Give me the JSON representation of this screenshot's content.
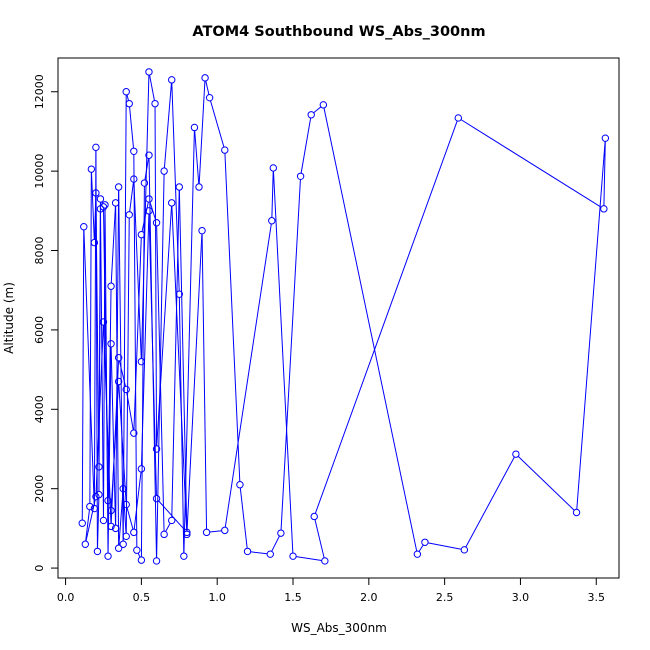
{
  "chart_data": {
    "type": "line",
    "title": "ATOM4 Southbound WS_Abs_300nm",
    "xlabel": "WS_Abs_300nm",
    "ylabel": "Altitude (m)",
    "xlim": [
      -0.05,
      3.65
    ],
    "ylim": [
      -250,
      12850
    ],
    "xticks": [
      0.0,
      0.5,
      1.0,
      1.5,
      2.0,
      2.5,
      3.0,
      3.5
    ],
    "xtick_labels": [
      "0.0",
      "0.5",
      "1.0",
      "1.5",
      "2.0",
      "2.5",
      "3.0",
      "3.5"
    ],
    "yticks": [
      0,
      2000,
      4000,
      6000,
      8000,
      10000,
      12000
    ],
    "ytick_labels": [
      "0",
      "2000",
      "4000",
      "6000",
      "8000",
      "10000",
      "12000"
    ],
    "grid": false,
    "legend": "none",
    "series_color": "#0000ff",
    "series": [
      {
        "marker": "open-circle",
        "x": [
          0.11,
          0.12,
          0.19,
          0.2,
          0.21,
          0.22,
          0.23,
          0.25,
          0.26,
          0.28,
          0.3,
          0.33,
          0.35,
          0.38,
          0.4,
          0.42,
          0.45,
          0.47,
          0.5,
          0.52,
          0.55,
          0.6,
          0.65,
          0.7,
          0.75,
          0.78,
          0.85,
          0.88,
          0.92,
          0.95,
          1.05,
          1.15,
          1.2,
          1.35,
          1.42,
          1.55,
          1.62,
          1.7,
          2.32,
          2.37,
          2.63,
          2.97,
          3.37,
          3.56,
          3.55,
          2.59,
          1.64,
          1.71,
          1.5,
          1.37,
          1.36,
          1.05,
          0.93,
          0.9,
          0.8,
          0.7,
          0.6,
          0.59,
          0.55,
          0.5,
          0.45,
          0.42,
          0.4,
          0.38,
          0.35,
          0.33,
          0.3,
          0.28,
          0.25,
          0.23,
          0.22,
          0.2,
          0.19,
          0.17,
          0.16,
          0.13,
          0.2,
          0.25,
          0.3,
          0.35,
          0.4,
          0.45,
          0.5,
          0.55,
          0.6,
          0.65,
          0.7,
          0.75,
          0.8,
          0.6,
          0.55,
          0.5,
          0.45,
          0.4,
          0.35,
          0.3
        ],
        "y": [
          1130,
          8600,
          1500,
          10600,
          420,
          1850,
          9050,
          1200,
          9150,
          300,
          5650,
          1000,
          9600,
          600,
          12000,
          11700,
          10500,
          450,
          200,
          9700,
          10400,
          180,
          10000,
          12300,
          6900,
          300,
          11100,
          9600,
          12350,
          11850,
          10530,
          2100,
          420,
          350,
          880,
          9870,
          11420,
          11670,
          350,
          650,
          460,
          2870,
          1400,
          10830,
          9050,
          11340,
          1300,
          180,
          300,
          10080,
          8750,
          950,
          900,
          8500,
          850,
          9200,
          3000,
          11700,
          12500,
          5200,
          9800,
          8900,
          800,
          2000,
          500,
          9200,
          7100,
          1700,
          9100,
          9300,
          2550,
          9450,
          8200,
          10050,
          1550,
          600,
          1800,
          6200,
          1050,
          5300,
          4500,
          3400,
          8400,
          9300,
          8700,
          850,
          1200,
          9600,
          900,
          1750,
          9000,
          2500,
          900,
          1600,
          4700,
          1450
        ]
      }
    ]
  }
}
